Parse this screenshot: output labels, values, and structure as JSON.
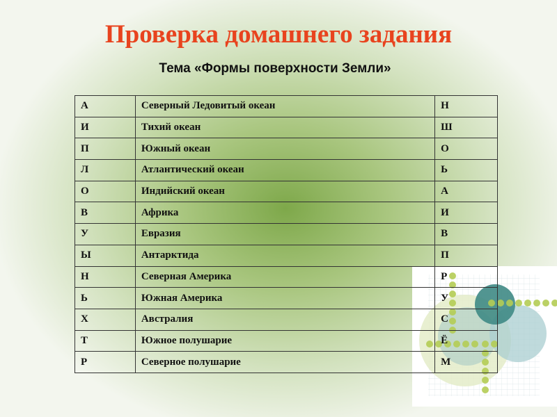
{
  "slide": {
    "title": "Проверка домашнего задания",
    "subtitle": "Тема «Формы поверхности Земли»",
    "colors": {
      "title": "#e8431e",
      "background_center": "#7ea84a",
      "decoration_teal": "#3f8a85"
    },
    "rows": [
      [
        "А",
        "Северный Ледовитый океан",
        "Н"
      ],
      [
        "И",
        "Тихий океан",
        "Ш"
      ],
      [
        "П",
        "Южный океан",
        "О"
      ],
      [
        "Л",
        "Атлантический океан",
        "Ь"
      ],
      [
        "О",
        "Индийский океан",
        "А"
      ],
      [
        "В",
        "Африка",
        "И"
      ],
      [
        "У",
        "Евразия",
        "В"
      ],
      [
        "Ы",
        "Антарктида",
        "П"
      ],
      [
        "Н",
        "Северная Америка",
        "Р"
      ],
      [
        "Ь",
        "Южная Америка",
        "У"
      ],
      [
        "Х",
        "Австралия",
        "С"
      ],
      [
        "Т",
        "Южное полушарие",
        "Ё"
      ],
      [
        "Р",
        "Северное полушарие",
        "М"
      ]
    ]
  }
}
